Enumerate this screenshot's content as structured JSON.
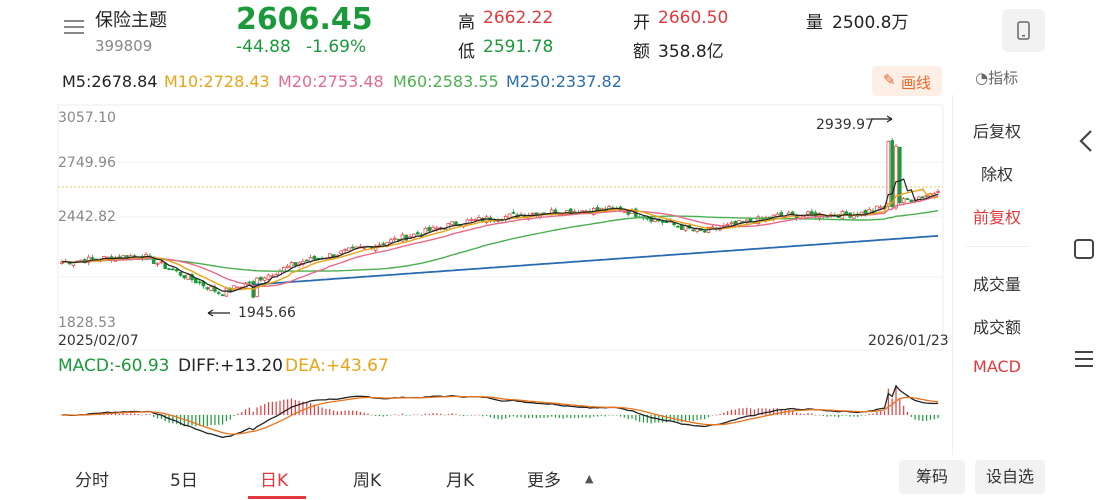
{
  "header": {
    "title": "保险主题",
    "code": "399809",
    "price": "2606.45",
    "change": "-44.88",
    "change_pct": "-1.69%",
    "high_label": "高",
    "high": "2662.22",
    "low_label": "低",
    "low": "2591.78",
    "open_label": "开",
    "open": "2660.50",
    "amount_label": "额",
    "amount": "358.8亿",
    "volume_label": "量",
    "volume": "2500.8万"
  },
  "ma": {
    "m5": "M5:2678.84",
    "m10": "M10:2728.43",
    "m20": "M20:2753.48",
    "m60": "M60:2583.55",
    "m250": "M250:2337.82",
    "draw_button": "画线",
    "indicator_button": "指标",
    "colors": {
      "m5": "#222222",
      "m10": "#e8a317",
      "m20": "#e86a8a",
      "m60": "#4caf50",
      "m250": "#2a6cb0"
    }
  },
  "axis": {
    "y_top": "3057.10",
    "y_mid": "2749.96",
    "y_low": "2442.82",
    "y_bottom": "1828.53",
    "date_start": "2025/02/07",
    "date_end": "2026/01/23",
    "max_label": "2939.97",
    "min_label": "1945.66"
  },
  "macd": {
    "macd": "MACD:-60.93",
    "diff": "DIFF:+13.20",
    "dea": "DEA:+43.67"
  },
  "side_menu": {
    "hfq": "后复权",
    "cq": "除权",
    "qfq": "前复权",
    "vol": "成交量",
    "amt": "成交额",
    "macd": "MACD"
  },
  "tabs": [
    "分时",
    "5日",
    "日K",
    "周K",
    "月K",
    "更多"
  ],
  "bottom": {
    "chips": "筹码",
    "watchlist": "设自选"
  },
  "icons": {
    "menu": "hamburger-icon",
    "landscape": "rotate-phone-icon",
    "back": "back-arrow-icon"
  },
  "chart_data": {
    "type": "candlestick",
    "title": "",
    "xlabel": "",
    "ylabel": "",
    "x_range": [
      "2025/02/07",
      "2026/01/23"
    ],
    "ylim": [
      1828.53,
      3057.1
    ],
    "close_path_approx": [
      [
        "2025/02",
        2180
      ],
      [
        "2025/03",
        2220
      ],
      [
        "2025/04",
        1990
      ],
      [
        "2025/05",
        2180
      ],
      [
        "2025/06",
        2290
      ],
      [
        "2025/07",
        2420
      ],
      [
        "2025/08",
        2480
      ],
      [
        "2025/09",
        2500
      ],
      [
        "2025/10",
        2360
      ],
      [
        "2025/11",
        2460
      ],
      [
        "2025/12",
        2470
      ],
      [
        "2026/01",
        2606.45
      ]
    ],
    "max": 2939.97,
    "min": 1945.66
  }
}
